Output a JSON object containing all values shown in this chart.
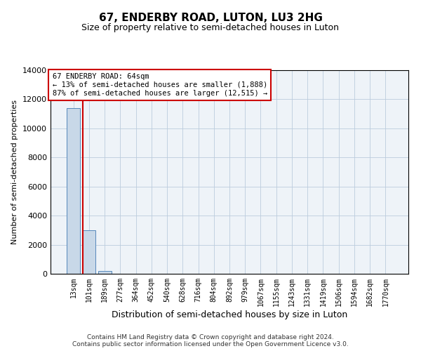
{
  "title": "67, ENDERBY ROAD, LUTON, LU3 2HG",
  "subtitle": "Size of property relative to semi-detached houses in Luton",
  "xlabel": "Distribution of semi-detached houses by size in Luton",
  "ylabel": "Number of semi-detached properties",
  "bin_labels": [
    "13sqm",
    "101sqm",
    "189sqm",
    "277sqm",
    "364sqm",
    "452sqm",
    "540sqm",
    "628sqm",
    "716sqm",
    "804sqm",
    "892sqm",
    "979sqm",
    "1067sqm",
    "1155sqm",
    "1243sqm",
    "1331sqm",
    "1419sqm",
    "1506sqm",
    "1594sqm",
    "1682sqm",
    "1770sqm"
  ],
  "bar_values": [
    11400,
    3000,
    180,
    20,
    5,
    2,
    1,
    1,
    1,
    1,
    1,
    0,
    0,
    0,
    0,
    0,
    0,
    0,
    0,
    0,
    0
  ],
  "bar_color": "#c8d8e8",
  "bar_edge_color": "#5588bb",
  "grid_color": "#bbccdd",
  "background_color": "#eef3f8",
  "annotation_text": "67 ENDERBY ROAD: 64sqm\n← 13% of semi-detached houses are smaller (1,888)\n87% of semi-detached houses are larger (12,515) →",
  "vline_color": "#cc0000",
  "annotation_box_color": "#cc0000",
  "ylim": [
    0,
    14000
  ],
  "yticks": [
    0,
    2000,
    4000,
    6000,
    8000,
    10000,
    12000,
    14000
  ],
  "footer_line1": "Contains HM Land Registry data © Crown copyright and database right 2024.",
  "footer_line2": "Contains public sector information licensed under the Open Government Licence v3.0.",
  "title_fontsize": 11,
  "subtitle_fontsize": 9,
  "annot_fontsize": 7.5,
  "footer_fontsize": 6.5,
  "tick_fontsize": 7,
  "ylabel_fontsize": 8,
  "xlabel_fontsize": 9
}
